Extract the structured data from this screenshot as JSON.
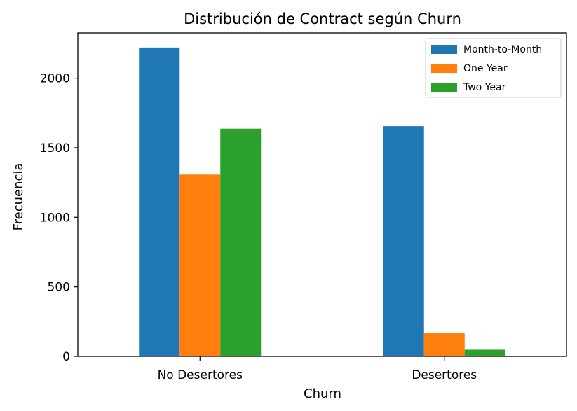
{
  "chart_data": {
    "type": "bar",
    "title": "Distribución de Contract según Churn",
    "xlabel": "Churn",
    "ylabel": "Frecuencia",
    "categories": [
      "No Desertores",
      "Desertores"
    ],
    "series": [
      {
        "name": "Month-to-Month",
        "color": "#1f77b4",
        "values": [
          2220,
          1655
        ]
      },
      {
        "name": "One Year",
        "color": "#ff7f0e",
        "values": [
          1307,
          166
        ]
      },
      {
        "name": "Two Year",
        "color": "#2ca02c",
        "values": [
          1637,
          48
        ]
      }
    ],
    "ylim": [
      0,
      2325
    ],
    "yticks": [
      0,
      500,
      1000,
      1500,
      2000
    ],
    "legend_position": "top-right",
    "grid": false
  }
}
